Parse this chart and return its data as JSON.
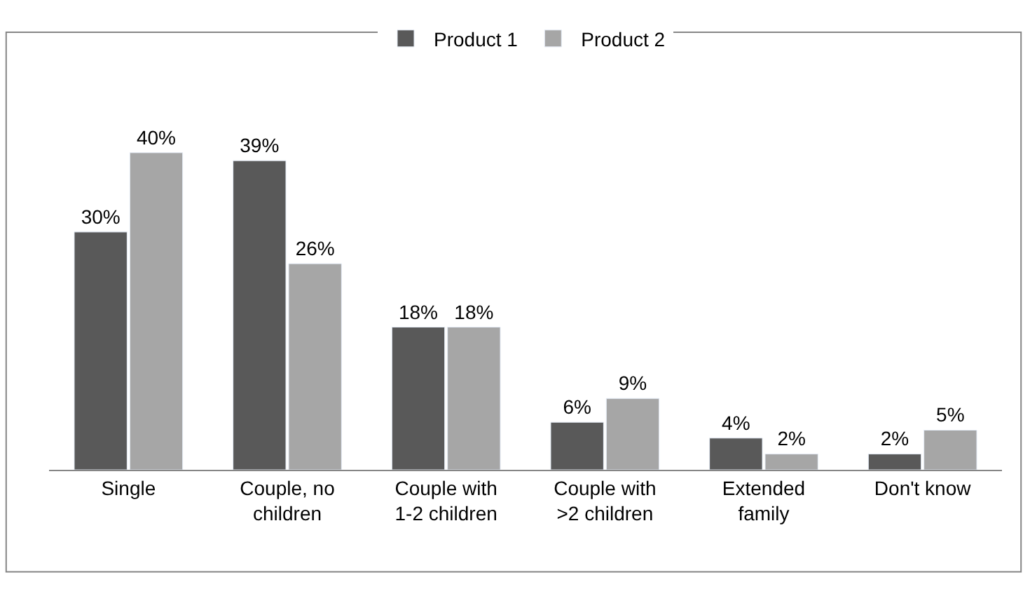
{
  "chart_data": {
    "type": "bar",
    "categories": [
      "Single",
      "Couple, no children",
      "Couple with 1-2 children",
      "Couple with >2 children",
      "Extended family",
      "Don't know"
    ],
    "series": [
      {
        "name": "Product 1",
        "color": "#595959",
        "values": [
          30,
          39,
          18,
          6,
          4,
          2
        ],
        "value_labels": [
          "30%",
          "39%",
          "18%",
          "6%",
          "4%",
          "2%"
        ]
      },
      {
        "name": "Product 2",
        "color": "#a6a6a6",
        "values": [
          40,
          26,
          18,
          9,
          2,
          5
        ],
        "value_labels": [
          "40%",
          "26%",
          "18%",
          "9%",
          "2%",
          "5%"
        ]
      }
    ],
    "legend": "top"
  }
}
